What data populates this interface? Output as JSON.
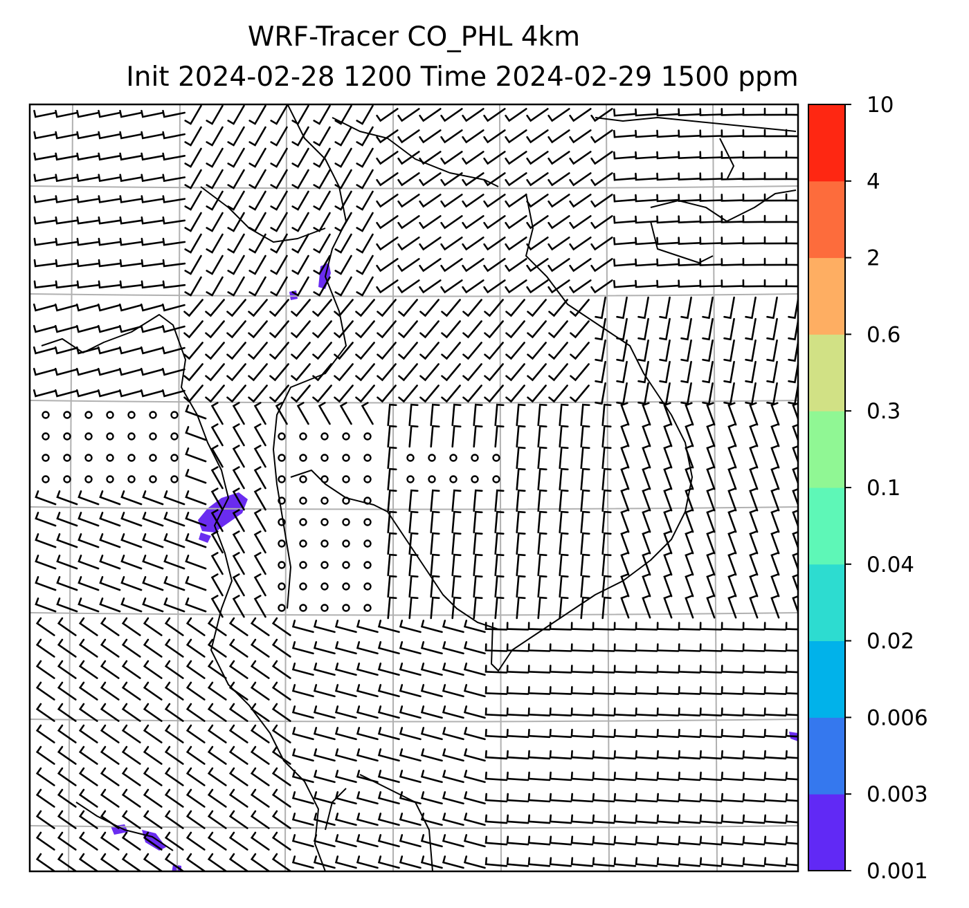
{
  "figure": {
    "title_line1": "WRF-Tracer CO_PHL 4km",
    "title_line2": "Init 2024-02-28 1200 Time 2024-02-29 1500 ppm"
  },
  "map": {
    "layers": [
      "tracer-concentration-fill",
      "wind-barbs",
      "coastlines-and-borders",
      "lat-lon-gridlines"
    ],
    "gridlines": true,
    "barb_color": "#000000",
    "grid_color": "#b0b0b0",
    "tracer_patch_color": "#6a2cf0"
  },
  "colorbar": {
    "levels": [
      "0.001",
      "0.003",
      "0.006",
      "0.02",
      "0.04",
      "0.1",
      "0.3",
      "0.6",
      "2",
      "4",
      "10"
    ],
    "colors": [
      "#6129f5",
      "#3578ee",
      "#01b2ea",
      "#2ddcd0",
      "#5ef7b7",
      "#90f794",
      "#d1e185",
      "#feae62",
      "#fd6c3c",
      "#fe2712"
    ]
  }
}
